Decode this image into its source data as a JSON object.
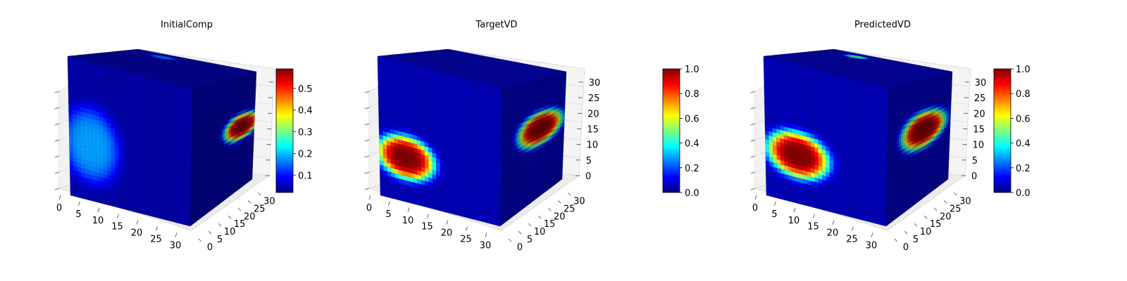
{
  "chart_data": [
    {
      "type": "voxel3d",
      "title": "InitialComp",
      "axes": {
        "x_ticks": [
          "0",
          "5",
          "10",
          "15",
          "20",
          "25",
          "30"
        ],
        "y_ticks": [
          "0",
          "5",
          "10",
          "15",
          "20",
          "25",
          "30"
        ],
        "z_ticks": []
      },
      "colormap": "jet",
      "colorbar": {
        "min": 0.02,
        "max": 0.59,
        "ticks": [
          "0.1",
          "0.2",
          "0.3",
          "0.4",
          "0.5"
        ],
        "tick_values": [
          0.1,
          0.2,
          0.3,
          0.4,
          0.5
        ]
      },
      "features": [
        {
          "face": "front",
          "center_u": 0.18,
          "center_v": 0.4,
          "radius_u": 0.26,
          "radius_v": 0.3,
          "peak": 0.18
        },
        {
          "face": "right",
          "center_u": 0.8,
          "center_v": 0.55,
          "radius_u": 0.3,
          "radius_v": 0.12,
          "peak": 0.59
        },
        {
          "face": "top",
          "center_u": 0.3,
          "center_v": 0.85,
          "radius_u": 0.12,
          "radius_v": 0.08,
          "peak": 0.16
        }
      ],
      "background": 0.04,
      "grid": true
    },
    {
      "type": "voxel3d",
      "title": "TargetVD",
      "axes": {
        "x_ticks": [
          "0",
          "5",
          "10",
          "15",
          "20",
          "25",
          "30"
        ],
        "y_ticks": [
          "0",
          "5",
          "10",
          "15",
          "20",
          "25",
          "30"
        ],
        "z_ticks": [
          "0",
          "5",
          "10",
          "15",
          "20",
          "25",
          "30"
        ]
      },
      "colormap": "jet",
      "colorbar": {
        "min": 0.0,
        "max": 1.0,
        "ticks": [
          "0.0",
          "0.2",
          "0.4",
          "0.6",
          "0.8",
          "1.0"
        ],
        "tick_values": [
          0,
          0.2,
          0.4,
          0.6,
          0.8,
          1.0
        ]
      },
      "features": [
        {
          "face": "front",
          "center_u": 0.22,
          "center_v": 0.32,
          "radius_u": 0.26,
          "radius_v": 0.17,
          "peak": 1.0
        },
        {
          "face": "right",
          "center_u": 0.62,
          "center_v": 0.58,
          "radius_u": 0.38,
          "radius_v": 0.15,
          "peak": 1.0
        }
      ],
      "background": 0.05,
      "grid": true
    },
    {
      "type": "voxel3d",
      "title": "PredictedVD",
      "axes": {
        "x_ticks": [
          "0",
          "5",
          "10",
          "15",
          "20",
          "25",
          "30"
        ],
        "y_ticks": [
          "0",
          "5",
          "10",
          "15",
          "20",
          "25",
          "30"
        ],
        "z_ticks": [
          "0",
          "5",
          "10",
          "15",
          "20",
          "25",
          "30"
        ]
      },
      "colormap": "jet",
      "colorbar": {
        "min": 0.0,
        "max": 1.0,
        "ticks": [
          "0.0",
          "0.2",
          "0.4",
          "0.6",
          "0.8",
          "1.0"
        ],
        "tick_values": [
          0,
          0.2,
          0.4,
          0.6,
          0.8,
          1.0
        ]
      },
      "features": [
        {
          "face": "front",
          "center_u": 0.27,
          "center_v": 0.35,
          "radius_u": 0.28,
          "radius_v": 0.18,
          "peak": 1.0
        },
        {
          "face": "right",
          "center_u": 0.58,
          "center_v": 0.58,
          "radius_u": 0.38,
          "radius_v": 0.16,
          "peak": 1.0
        },
        {
          "face": "top",
          "center_u": 0.28,
          "center_v": 0.85,
          "radius_u": 0.1,
          "radius_v": 0.07,
          "peak": 0.45
        }
      ],
      "background": 0.05,
      "grid": true
    }
  ]
}
